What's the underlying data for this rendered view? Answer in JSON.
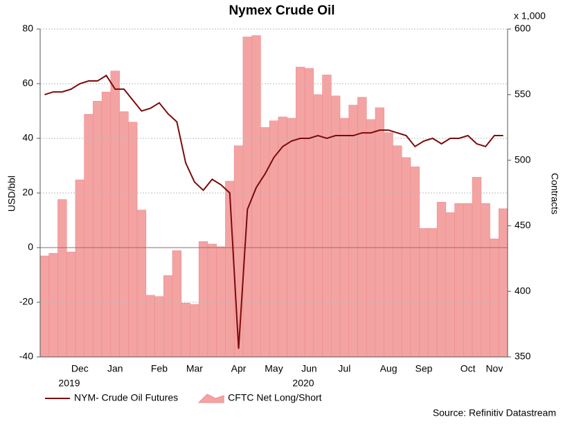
{
  "chart_data": {
    "type": "combo",
    "title": "Nymex Crude Oil",
    "ylabel": "USD/bbl",
    "y2label": "Contracts",
    "y2unit": "x 1,000",
    "source": "Source: Refinitiv Datastream",
    "year_labels": [
      "2019",
      "2020"
    ],
    "categories": [
      null,
      null,
      null,
      null,
      "Dec",
      null,
      null,
      null,
      "Jan",
      null,
      null,
      null,
      null,
      "Feb",
      null,
      null,
      null,
      "Mar",
      null,
      null,
      null,
      null,
      "Apr",
      null,
      null,
      null,
      "May",
      null,
      null,
      null,
      "Jun",
      null,
      null,
      null,
      "Jul",
      null,
      null,
      null,
      null,
      "Aug",
      null,
      null,
      null,
      "Sep",
      null,
      null,
      null,
      null,
      "Oct",
      null,
      null,
      "Nov",
      null
    ],
    "series": [
      {
        "name": "NYM- Crude Oil Futures",
        "type": "line",
        "color": "#7a0a0a",
        "values": [
          56,
          57,
          57,
          58,
          60,
          61,
          61,
          63,
          58,
          58,
          54,
          50,
          51,
          53,
          49,
          46,
          31,
          24,
          21,
          25,
          23,
          20,
          -37,
          14,
          22,
          27,
          33,
          37,
          39,
          40,
          40,
          41,
          40,
          41,
          41,
          41,
          42,
          42,
          43,
          43,
          42,
          41,
          37,
          39,
          40,
          38,
          40,
          40,
          41,
          38,
          37,
          41,
          41
        ]
      },
      {
        "name": "CFTC Net Long/Short",
        "type": "bar",
        "axis": "y2",
        "color": "#f4a3a3",
        "values": [
          427,
          429,
          470,
          430,
          485,
          535,
          545,
          552,
          568,
          537,
          529,
          462,
          397,
          396,
          412,
          431,
          391,
          390,
          438,
          436,
          434,
          484,
          511,
          594,
          595,
          525,
          530,
          533,
          532,
          571,
          570,
          550,
          565,
          549,
          532,
          542,
          548,
          531,
          540,
          521,
          511,
          502,
          495,
          448,
          448,
          468,
          460,
          467,
          467,
          487,
          467,
          440,
          463
        ]
      }
    ],
    "ylim": [
      -40,
      80
    ],
    "yticks": [
      -40,
      -20,
      0,
      20,
      40,
      60,
      80
    ],
    "y2lim": [
      350,
      600
    ],
    "y2ticks": [
      350,
      400,
      450,
      500,
      550,
      600
    ],
    "grid": true
  }
}
